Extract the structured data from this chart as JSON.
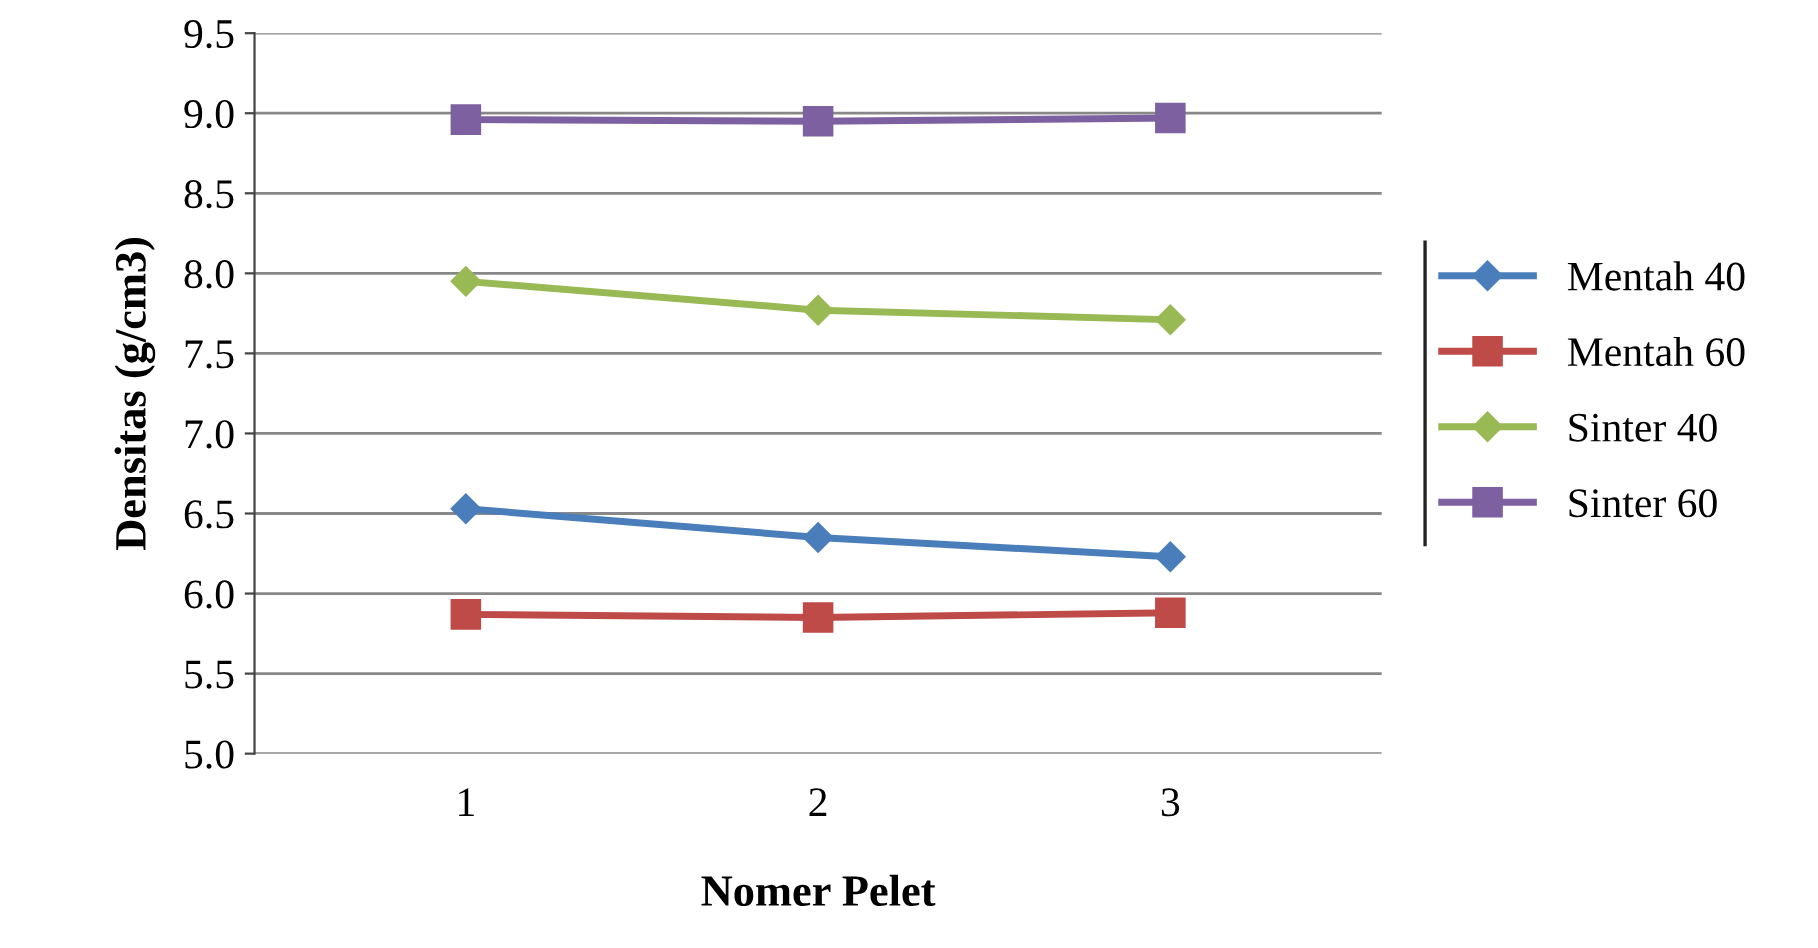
{
  "chart_data": {
    "type": "line",
    "xlabel": "Nomer Pelet",
    "ylabel": "Densitas (g/cm3)",
    "categories": [
      "1",
      "2",
      "3"
    ],
    "series": [
      {
        "name": "Mentah 40",
        "color": "#4a7ebb",
        "values": [
          6.53,
          6.35,
          6.23
        ],
        "marker": "diamond"
      },
      {
        "name": "Mentah 60",
        "color": "#be4b48",
        "values": [
          5.87,
          5.85,
          5.88
        ],
        "marker": "square"
      },
      {
        "name": "Sinter 40",
        "color": "#98b954",
        "values": [
          7.95,
          7.77,
          7.71
        ],
        "marker": "diamond"
      },
      {
        "name": "Sinter 60",
        "color": "#7d60a0",
        "values": [
          8.96,
          8.95,
          8.97
        ],
        "marker": "square"
      }
    ],
    "ylim": [
      5.0,
      9.5
    ],
    "yticks": [
      {
        "value": 5.0,
        "label": "5.0"
      },
      {
        "value": 5.5,
        "label": "5.5"
      },
      {
        "value": 6.0,
        "label": "6.0"
      },
      {
        "value": 6.5,
        "label": "6.5"
      },
      {
        "value": 7.0,
        "label": "7.0"
      },
      {
        "value": 7.5,
        "label": "7.5"
      },
      {
        "value": 8.0,
        "label": "8.0"
      },
      {
        "value": 8.5,
        "label": "8.5"
      },
      {
        "value": 9.0,
        "label": "9.0"
      },
      {
        "value": 9.5,
        "label": "9.5"
      }
    ],
    "grid": "y",
    "legend": "right"
  }
}
